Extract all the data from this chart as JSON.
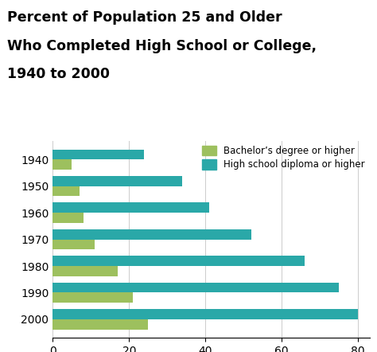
{
  "title_line1": "Percent of Population 25 and Older",
  "title_line2": "Who Completed High School or College,",
  "title_line3": "1940 to 2000",
  "years": [
    "1940",
    "1950",
    "1960",
    "1970",
    "1980",
    "1990",
    "2000"
  ],
  "bachelors": [
    5,
    7,
    8,
    11,
    17,
    21,
    25
  ],
  "highschool": [
    24,
    34,
    41,
    52,
    66,
    75,
    80
  ],
  "color_bachelors": "#9dc05e",
  "color_highschool": "#2aa8a8",
  "legend_labels": [
    "Bachelor’s degree or higher",
    "High school diploma or higher"
  ],
  "xlim": [
    0,
    83
  ],
  "xticks": [
    0,
    20,
    40,
    60,
    80
  ],
  "bar_height": 0.38,
  "background_color": "#ffffff",
  "title_fontsize": 12.5,
  "tick_fontsize": 10
}
